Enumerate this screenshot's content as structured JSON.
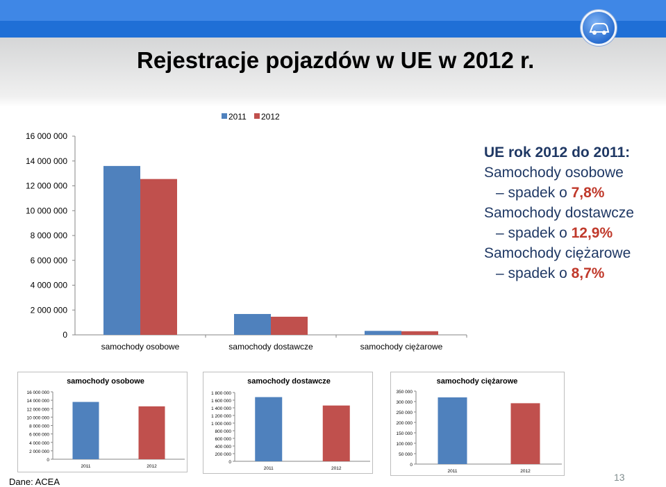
{
  "slide": {
    "title": "Rejestracje pojazdów w UE w 2012 r.",
    "source": "Dane: ACEA",
    "page_number": "13"
  },
  "colors": {
    "series_2011": "#4f81bd",
    "series_2012": "#c0504d",
    "topbar": "#1f6fd6"
  },
  "logo": {
    "icon": "car-logo-icon"
  },
  "textbox": {
    "heading": "UE rok 2012 do 2011:",
    "items": [
      {
        "category": "Samochody osobowe",
        "change": "– spadek o ",
        "percent": "7,8%"
      },
      {
        "category": "Samochody dostawcze",
        "change": "– spadek o ",
        "percent": "12,9%"
      },
      {
        "category": "Samochody ciężarowe",
        "change": "– spadek o ",
        "percent": "8,7%"
      }
    ]
  },
  "chart_data": [
    {
      "type": "bar",
      "categories": [
        "samochody osobowe",
        "samochody dostawcze",
        "samochody ciężarowe"
      ],
      "series": [
        {
          "name": "2011",
          "values": [
            13600000,
            1680000,
            320000
          ]
        },
        {
          "name": "2012",
          "values": [
            12550000,
            1460000,
            292000
          ]
        }
      ],
      "ylim": [
        0,
        16000000
      ],
      "yticks": [
        "0",
        "2 000 000",
        "4 000 000",
        "6 000 000",
        "8 000 000",
        "10 000 000",
        "12 000 000",
        "14 000 000",
        "16 000 000"
      ],
      "legend": "top",
      "grid": false
    },
    {
      "type": "bar",
      "title": "samochody osobowe",
      "categories": [
        "2011",
        "2012"
      ],
      "values": [
        13600000,
        12550000
      ],
      "ylim": [
        0,
        16000000
      ],
      "yticks": [
        "0",
        "2 000 000",
        "4 000 000",
        "6 000 000",
        "8 000 000",
        "10 000 000",
        "12 000 000",
        "14 000 000",
        "16 000 000"
      ]
    },
    {
      "type": "bar",
      "title": "samochody dostawcze",
      "categories": [
        "2011",
        "2012"
      ],
      "values": [
        1680000,
        1460000
      ],
      "ylim": [
        0,
        1800000
      ],
      "yticks": [
        "0",
        "200 000",
        "400 000",
        "600 000",
        "800 000",
        "1 000 000",
        "1 200 000",
        "1 400 000",
        "1 600 000",
        "1 800 000"
      ]
    },
    {
      "type": "bar",
      "title": "samochody ciężarowe",
      "categories": [
        "2011",
        "2012"
      ],
      "values": [
        320000,
        292000
      ],
      "ylim": [
        0,
        350000
      ],
      "yticks": [
        "0",
        "50 000",
        "100 000",
        "150 000",
        "200 000",
        "250 000",
        "300 000",
        "350 000"
      ]
    }
  ]
}
